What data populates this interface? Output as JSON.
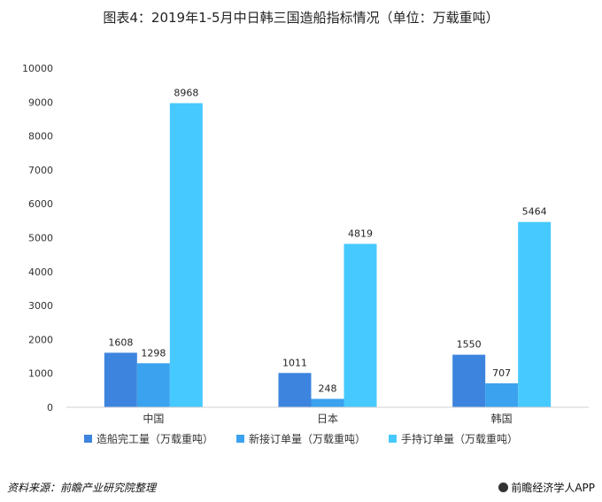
{
  "header": {
    "title": "图表4：2019年1-5月中日韩三国造船指标情况（单位：万载重吨）"
  },
  "chart_data": {
    "type": "bar",
    "categories": [
      "中国",
      "日本",
      "韩国"
    ],
    "series": [
      {
        "name": "造船完工量（万载重吨）",
        "values": [
          1608,
          1011,
          1550
        ],
        "color": "#3d84de"
      },
      {
        "name": "新接订单量（万载重吨）",
        "values": [
          1298,
          248,
          707
        ],
        "color": "#3aa2ee"
      },
      {
        "name": "手持订单量（万载重吨）",
        "values": [
          8968,
          4819,
          5464
        ],
        "color": "#46c9fe"
      }
    ],
    "ylim": [
      0,
      10000
    ],
    "yticks": [
      0,
      1000,
      2000,
      3000,
      4000,
      5000,
      6000,
      7000,
      8000,
      9000,
      10000
    ],
    "grid": false,
    "legend_position": "bottom"
  },
  "footer": {
    "source": "资料来源：前瞻产业研究院整理",
    "brand": "前瞻经济学人APP"
  }
}
